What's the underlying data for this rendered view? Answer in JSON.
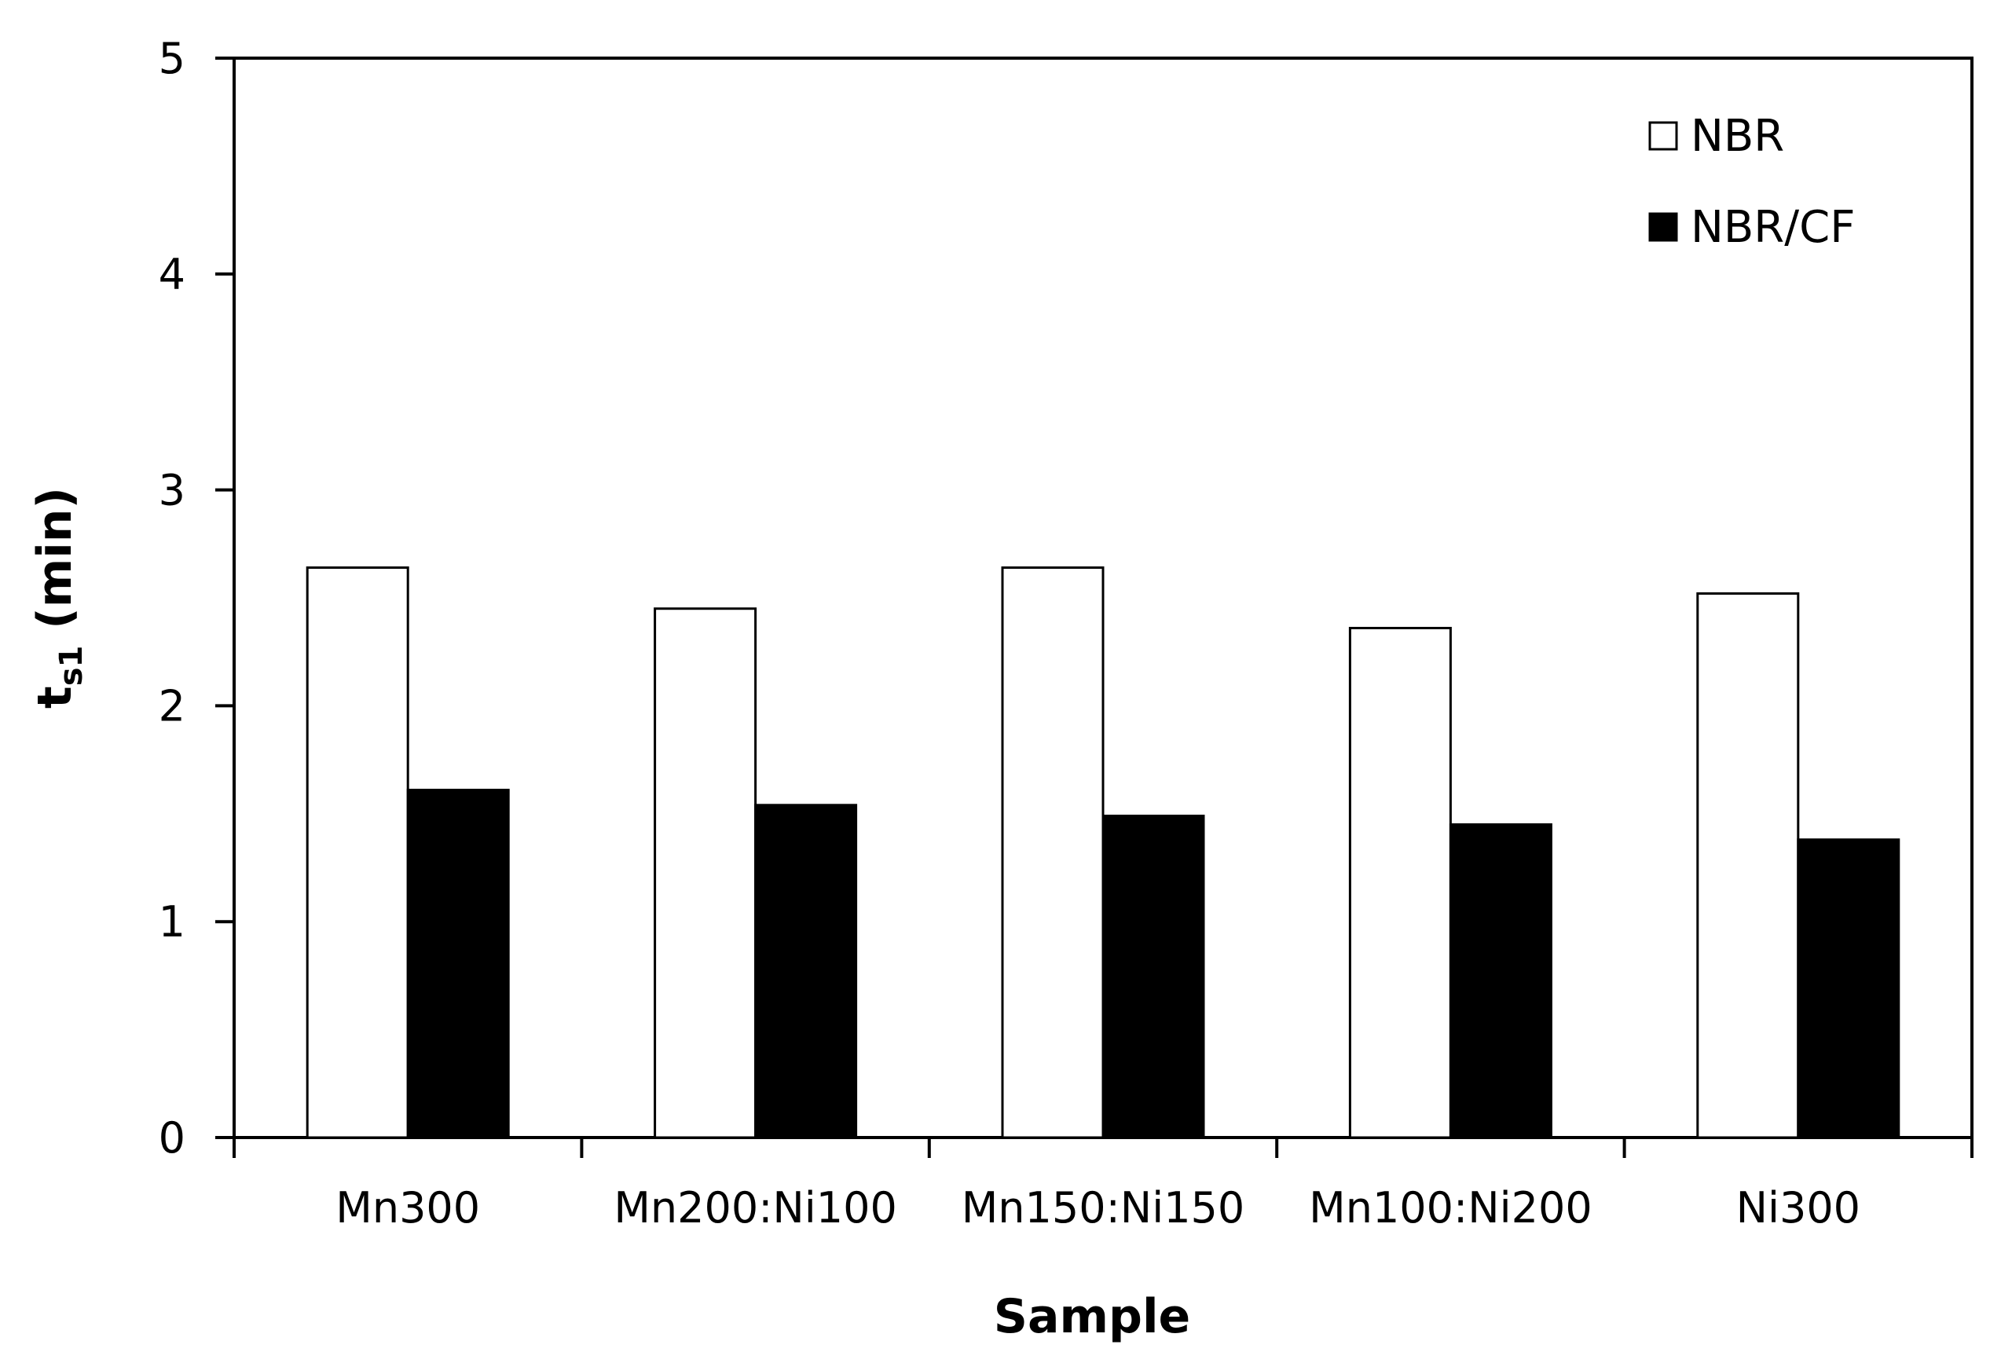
{
  "chart_data": {
    "type": "bar",
    "title": "",
    "xlabel": "Sample",
    "ylabel_main": "t",
    "ylabel_sub": "s1",
    "ylabel_unit": " (min)",
    "categories": [
      "Mn300",
      "Mn200:Ni100",
      "Mn150:Ni150",
      "Mn100:Ni200",
      "Ni300"
    ],
    "series": [
      {
        "name": "NBR",
        "values": [
          2.64,
          2.45,
          2.64,
          2.36,
          2.52
        ],
        "color": "#ffffff",
        "stroke": "#000000"
      },
      {
        "name": "NBR/CF",
        "values": [
          1.61,
          1.54,
          1.49,
          1.45,
          1.38
        ],
        "color": "#000000",
        "stroke": "#000000"
      }
    ],
    "ylim": [
      0,
      5
    ],
    "yticks": [
      "0",
      "1",
      "2",
      "3",
      "4",
      "5"
    ],
    "grid": false,
    "legend": "top-right"
  }
}
